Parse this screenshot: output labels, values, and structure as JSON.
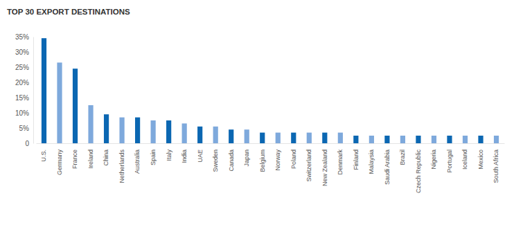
{
  "chart_data": {
    "type": "bar",
    "title": "TOP 30 EXPORT DESTINATIONS",
    "categories": [
      "U.S.",
      "Germany",
      "France",
      "Ireland",
      "China",
      "Netherlands",
      "Australia",
      "Spain",
      "Italy",
      "India",
      "UAE",
      "Sweden",
      "Canada",
      "Japan",
      "Belgium",
      "Norway",
      "Poland",
      "Switzerland",
      "New Zealand",
      "Denmark",
      "Finland",
      "Malaysia",
      "Saudi Arabia",
      "Brazil",
      "Czech Republic",
      "Nigeria",
      "Portugal",
      "Iceland",
      "Mexico",
      "South Africa"
    ],
    "values": [
      34.5,
      26.5,
      24.5,
      12.5,
      9.5,
      8.5,
      8.5,
      7.5,
      7.5,
      6.5,
      5.5,
      5.5,
      4.5,
      4.5,
      3.5,
      3.5,
      3.5,
      3.5,
      3.5,
      3.5,
      2.5,
      2.5,
      2.5,
      2.5,
      2.5,
      2.5,
      2.5,
      2.5,
      2.5,
      2.5
    ],
    "colors": [
      "#0b67b2",
      "#7ea9dc",
      "#0b67b2",
      "#7ea9dc",
      "#0b67b2",
      "#7ea9dc",
      "#0b67b2",
      "#7ea9dc",
      "#0b67b2",
      "#7ea9dc",
      "#0b67b2",
      "#7ea9dc",
      "#0b67b2",
      "#7ea9dc",
      "#0b67b2",
      "#7ea9dc",
      "#0b67b2",
      "#7ea9dc",
      "#0b67b2",
      "#7ea9dc",
      "#0b67b2",
      "#7ea9dc",
      "#0b67b2",
      "#7ea9dc",
      "#0b67b2",
      "#7ea9dc",
      "#0b67b2",
      "#7ea9dc",
      "#0b67b2",
      "#7ea9dc"
    ],
    "ylim": [
      0,
      35
    ],
    "yticks": [
      0,
      {
        "value": 5,
        "label": "5%"
      },
      {
        "value": 10,
        "label": "10%"
      },
      {
        "value": 15,
        "label": "15%"
      },
      {
        "value": 20,
        "label": "20%"
      },
      {
        "value": 25,
        "label": "25%"
      },
      {
        "value": 30,
        "label": "30%"
      },
      {
        "value": 35,
        "label": "35%"
      }
    ],
    "grid": false
  }
}
